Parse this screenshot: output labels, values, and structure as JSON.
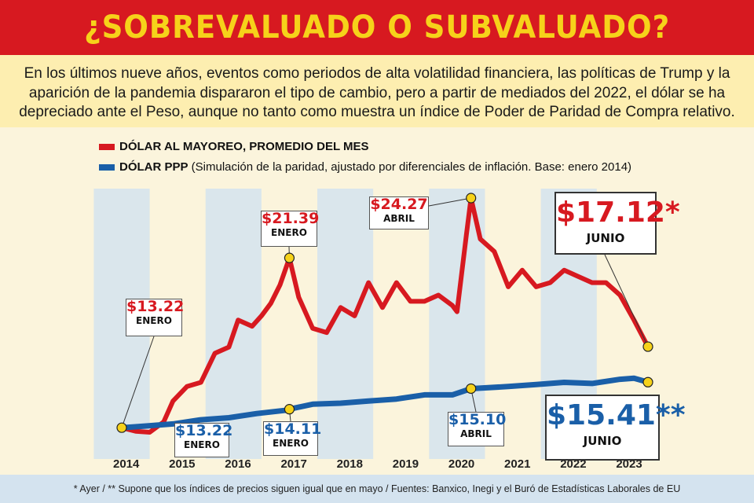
{
  "header": {
    "title": "¿SOBREVALUADO O SUBVALUADO?",
    "subtitle": "En los últimos nueve años, eventos como periodos de alta volatilidad financiera, las políticas de Trump y la aparición de la pandemia dispararon el tipo de cambio, pero a partir de mediados del 2022, el dólar se ha depreciado ante el Peso, aunque no tanto como muestra un índice de Poder de Paridad de Compra relativo."
  },
  "legend": {
    "red_label": "DÓLAR AL MAYOREO, PROMEDIO DEL MES",
    "blue_label": "DÓLAR PPP",
    "blue_note": " (Simulación de la paridad, ajustado por diferenciales de inflación. Base: enero 2014)"
  },
  "annotations": {
    "red_2014_value": "$13.22",
    "red_2014_month": "ENERO",
    "red_2017_value": "$21.39",
    "red_2017_month": "ENERO",
    "red_2020_value": "$24.27",
    "red_2020_month": "ABRIL",
    "red_2023_value": "$17.12*",
    "red_2023_month": "JUNIO",
    "blue_2014_value": "$13.22",
    "blue_2014_month": "ENERO",
    "blue_2017_value": "$14.11",
    "blue_2017_month": "ENERO",
    "blue_2020_value": "$15.10",
    "blue_2020_month": "ABRIL",
    "blue_2023_value": "$15.41**",
    "blue_2023_month": "JUNIO"
  },
  "footer": {
    "note": "* Ayer / ** Supone que los índices de precios siguen igual que en mayo / Fuentes: Banxico, Inegi y el Buró de Estadísticas Laborales de EU"
  },
  "colors": {
    "red": "#d71920",
    "blue": "#1a5fa8",
    "gold": "#f6d21a",
    "band": "#d4e3ef"
  },
  "chart_data": {
    "type": "line",
    "x_tick_labels": [
      "2014",
      "2015",
      "2016",
      "2017",
      "2018",
      "2019",
      "2020",
      "2021",
      "2022",
      "2023"
    ],
    "series": [
      {
        "name": "DÓLAR AL MAYOREO, PROMEDIO DEL MES",
        "color": "#d71920",
        "points": [
          [
            "2014-01",
            13.22
          ],
          [
            "2014-04",
            13.05
          ],
          [
            "2014-07",
            13.0
          ],
          [
            "2014-10",
            13.5
          ],
          [
            "2014-12",
            14.5
          ],
          [
            "2015-03",
            15.2
          ],
          [
            "2015-06",
            15.4
          ],
          [
            "2015-09",
            16.8
          ],
          [
            "2015-12",
            17.1
          ],
          [
            "2016-02",
            18.4
          ],
          [
            "2016-05",
            18.1
          ],
          [
            "2016-07",
            18.6
          ],
          [
            "2016-09",
            19.2
          ],
          [
            "2016-11",
            20.1
          ],
          [
            "2017-01",
            21.39
          ],
          [
            "2017-03",
            19.5
          ],
          [
            "2017-06",
            18.0
          ],
          [
            "2017-09",
            17.8
          ],
          [
            "2017-12",
            19.0
          ],
          [
            "2018-03",
            18.6
          ],
          [
            "2018-06",
            20.2
          ],
          [
            "2018-09",
            19.0
          ],
          [
            "2018-12",
            20.2
          ],
          [
            "2019-03",
            19.3
          ],
          [
            "2019-06",
            19.3
          ],
          [
            "2019-09",
            19.6
          ],
          [
            "2019-12",
            19.1
          ],
          [
            "2020-01",
            18.8
          ],
          [
            "2020-03",
            22.5
          ],
          [
            "2020-04",
            24.27
          ],
          [
            "2020-06",
            22.3
          ],
          [
            "2020-09",
            21.7
          ],
          [
            "2020-12",
            20.0
          ],
          [
            "2021-03",
            20.8
          ],
          [
            "2021-06",
            20.0
          ],
          [
            "2021-09",
            20.2
          ],
          [
            "2021-12",
            20.8
          ],
          [
            "2022-03",
            20.5
          ],
          [
            "2022-06",
            20.2
          ],
          [
            "2022-09",
            20.2
          ],
          [
            "2022-12",
            19.6
          ],
          [
            "2023-03",
            18.4
          ],
          [
            "2023-06",
            17.12
          ]
        ]
      },
      {
        "name": "DÓLAR PPP",
        "color": "#1a5fa8",
        "points": [
          [
            "2014-01",
            13.22
          ],
          [
            "2014-06",
            13.3
          ],
          [
            "2014-12",
            13.4
          ],
          [
            "2015-06",
            13.6
          ],
          [
            "2015-12",
            13.7
          ],
          [
            "2016-06",
            13.9
          ],
          [
            "2016-12",
            14.05
          ],
          [
            "2017-01",
            14.11
          ],
          [
            "2017-06",
            14.35
          ],
          [
            "2017-12",
            14.4
          ],
          [
            "2018-06",
            14.5
          ],
          [
            "2018-12",
            14.6
          ],
          [
            "2019-06",
            14.8
          ],
          [
            "2019-12",
            14.8
          ],
          [
            "2020-04",
            15.1
          ],
          [
            "2020-12",
            15.2
          ],
          [
            "2021-06",
            15.3
          ],
          [
            "2021-12",
            15.4
          ],
          [
            "2022-06",
            15.35
          ],
          [
            "2022-12",
            15.55
          ],
          [
            "2023-03",
            15.6
          ],
          [
            "2023-06",
            15.41
          ]
        ]
      }
    ],
    "markers": [
      {
        "series": "DÓLAR AL MAYOREO, PROMEDIO DEL MES",
        "x": "2014-01",
        "y": 13.22
      },
      {
        "series": "DÓLAR AL MAYOREO, PROMEDIO DEL MES",
        "x": "2017-01",
        "y": 21.39
      },
      {
        "series": "DÓLAR AL MAYOREO, PROMEDIO DEL MES",
        "x": "2020-04",
        "y": 24.27
      },
      {
        "series": "DÓLAR AL MAYOREO, PROMEDIO DEL MES",
        "x": "2023-06",
        "y": 17.12
      },
      {
        "series": "DÓLAR PPP",
        "x": "2017-01",
        "y": 14.11
      },
      {
        "series": "DÓLAR PPP",
        "x": "2020-04",
        "y": 15.1
      },
      {
        "series": "DÓLAR PPP",
        "x": "2023-06",
        "y": 15.41
      }
    ],
    "grid": "alternating year bands"
  }
}
